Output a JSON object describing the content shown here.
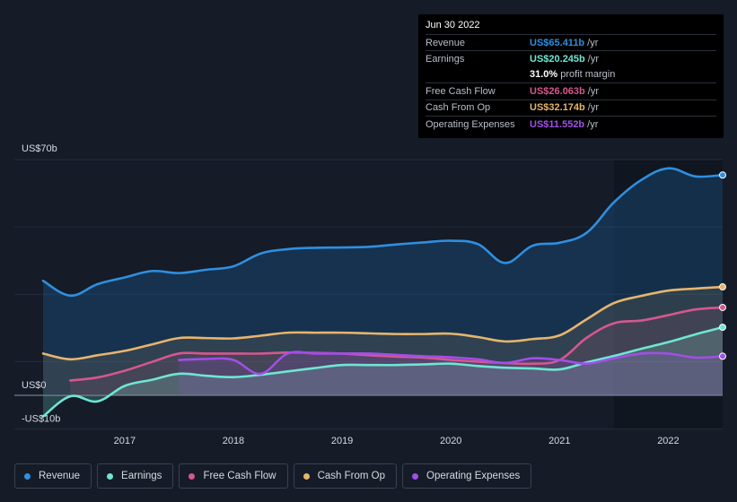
{
  "tooltip": {
    "date": "Jun 30 2022",
    "rows": [
      {
        "label": "Revenue",
        "value": "US$65.411b",
        "unit": "/yr",
        "color": "#2e8fe0"
      },
      {
        "label": "Earnings",
        "value": "US$20.245b",
        "unit": "/yr",
        "color": "#6ee6d4"
      },
      {
        "label": "",
        "value": "31.0%",
        "unit": "profit margin",
        "color": "#ffffff"
      },
      {
        "label": "Free Cash Flow",
        "value": "US$26.063b",
        "unit": "/yr",
        "color": "#d5578e"
      },
      {
        "label": "Cash From Op",
        "value": "US$32.174b",
        "unit": "/yr",
        "color": "#e6b56e"
      },
      {
        "label": "Operating Expenses",
        "value": "US$11.552b",
        "unit": "/yr",
        "color": "#a24ee8"
      }
    ]
  },
  "legend": [
    {
      "label": "Revenue",
      "color": "#2e8fe0"
    },
    {
      "label": "Earnings",
      "color": "#6ee6d4"
    },
    {
      "label": "Free Cash Flow",
      "color": "#d5578e"
    },
    {
      "label": "Cash From Op",
      "color": "#e6b56e"
    },
    {
      "label": "Operating Expenses",
      "color": "#a24ee8"
    }
  ],
  "chart_data": {
    "type": "area",
    "title": "",
    "xlabel": "",
    "ylabel": "",
    "ylim": [
      -10,
      70
    ],
    "xlim": [
      2016.25,
      2022.5
    ],
    "y_tick_labels": [
      "US$70b",
      "US$0",
      "-US$10b"
    ],
    "x_tick_labels": [
      "2017",
      "2018",
      "2019",
      "2020",
      "2021",
      "2022"
    ],
    "x_ticks": [
      2017,
      2018,
      2019,
      2020,
      2021,
      2022
    ],
    "highlight_start": 2021.5,
    "series": [
      {
        "name": "Revenue",
        "color": "#2e8fe0",
        "points": [
          [
            2016.25,
            34
          ],
          [
            2016.5,
            29.6
          ],
          [
            2016.75,
            33
          ],
          [
            2017.0,
            35
          ],
          [
            2017.25,
            36.9
          ],
          [
            2017.5,
            36.3
          ],
          [
            2017.75,
            37.3
          ],
          [
            2018.0,
            38.3
          ],
          [
            2018.25,
            42.1
          ],
          [
            2018.5,
            43.4
          ],
          [
            2018.75,
            43.8
          ],
          [
            2019.0,
            43.9
          ],
          [
            2019.25,
            44.1
          ],
          [
            2019.5,
            44.8
          ],
          [
            2019.75,
            45.4
          ],
          [
            2020.0,
            45.9
          ],
          [
            2020.25,
            44.9
          ],
          [
            2020.5,
            39.3
          ],
          [
            2020.75,
            44.4
          ],
          [
            2021.0,
            45.3
          ],
          [
            2021.25,
            48.3
          ],
          [
            2021.5,
            57.3
          ],
          [
            2021.75,
            63.9
          ],
          [
            2022.0,
            67.4
          ],
          [
            2022.25,
            65.0
          ],
          [
            2022.5,
            65.4
          ]
        ]
      },
      {
        "name": "Earnings",
        "color": "#6ee6d4",
        "points": [
          [
            2016.25,
            -6.3
          ],
          [
            2016.5,
            -0.3
          ],
          [
            2016.75,
            -1.8
          ],
          [
            2017.0,
            2.8
          ],
          [
            2017.25,
            4.6
          ],
          [
            2017.5,
            6.4
          ],
          [
            2017.75,
            5.8
          ],
          [
            2018.0,
            5.4
          ],
          [
            2018.25,
            6.1
          ],
          [
            2018.5,
            7.1
          ],
          [
            2018.75,
            8.1
          ],
          [
            2019.0,
            9.0
          ],
          [
            2019.25,
            9.0
          ],
          [
            2019.5,
            9.0
          ],
          [
            2019.75,
            9.2
          ],
          [
            2020.0,
            9.4
          ],
          [
            2020.25,
            8.7
          ],
          [
            2020.5,
            8.2
          ],
          [
            2020.75,
            8.0
          ],
          [
            2021.0,
            7.7
          ],
          [
            2021.25,
            9.8
          ],
          [
            2021.5,
            11.7
          ],
          [
            2021.75,
            13.8
          ],
          [
            2022.0,
            15.8
          ],
          [
            2022.25,
            18.1
          ],
          [
            2022.5,
            20.2
          ]
        ]
      },
      {
        "name": "Free Cash Flow",
        "color": "#d5578e",
        "points": [
          [
            2016.5,
            4.4
          ],
          [
            2016.75,
            5.3
          ],
          [
            2017.0,
            7.3
          ],
          [
            2017.25,
            9.9
          ],
          [
            2017.5,
            12.4
          ],
          [
            2017.75,
            12.4
          ],
          [
            2018.0,
            12.4
          ],
          [
            2018.25,
            12.4
          ],
          [
            2018.5,
            12.7
          ],
          [
            2018.75,
            12.6
          ],
          [
            2019.0,
            12.4
          ],
          [
            2019.25,
            11.9
          ],
          [
            2019.5,
            11.5
          ],
          [
            2019.75,
            11.2
          ],
          [
            2020.0,
            10.5
          ],
          [
            2020.25,
            10.0
          ],
          [
            2020.5,
            9.6
          ],
          [
            2020.75,
            9.4
          ],
          [
            2021.0,
            10.5
          ],
          [
            2021.25,
            17.1
          ],
          [
            2021.5,
            21.4
          ],
          [
            2021.75,
            22.2
          ],
          [
            2022.0,
            23.8
          ],
          [
            2022.25,
            25.5
          ],
          [
            2022.5,
            26.1
          ]
        ]
      },
      {
        "name": "Cash From Op",
        "color": "#e6b56e",
        "points": [
          [
            2016.25,
            12.4
          ],
          [
            2016.5,
            10.7
          ],
          [
            2016.75,
            11.9
          ],
          [
            2017.0,
            13.2
          ],
          [
            2017.25,
            15.1
          ],
          [
            2017.5,
            17.0
          ],
          [
            2017.75,
            17.0
          ],
          [
            2018.0,
            16.9
          ],
          [
            2018.25,
            17.7
          ],
          [
            2018.5,
            18.6
          ],
          [
            2018.75,
            18.6
          ],
          [
            2019.0,
            18.6
          ],
          [
            2019.25,
            18.4
          ],
          [
            2019.5,
            18.2
          ],
          [
            2019.75,
            18.2
          ],
          [
            2020.0,
            18.3
          ],
          [
            2020.25,
            17.3
          ],
          [
            2020.5,
            16.0
          ],
          [
            2020.75,
            16.7
          ],
          [
            2021.0,
            17.8
          ],
          [
            2021.25,
            22.6
          ],
          [
            2021.5,
            27.4
          ],
          [
            2021.75,
            29.5
          ],
          [
            2022.0,
            31.1
          ],
          [
            2022.25,
            31.7
          ],
          [
            2022.5,
            32.2
          ]
        ]
      },
      {
        "name": "Operating Expenses",
        "color": "#a24ee8",
        "points": [
          [
            2017.5,
            10.5
          ],
          [
            2017.75,
            10.8
          ],
          [
            2018.0,
            10.5
          ],
          [
            2018.25,
            6.4
          ],
          [
            2018.5,
            12.4
          ],
          [
            2018.75,
            12.4
          ],
          [
            2019.0,
            12.4
          ],
          [
            2019.25,
            12.4
          ],
          [
            2019.5,
            12.0
          ],
          [
            2019.75,
            11.6
          ],
          [
            2020.0,
            11.3
          ],
          [
            2020.25,
            10.7
          ],
          [
            2020.5,
            9.6
          ],
          [
            2020.75,
            11.0
          ],
          [
            2021.0,
            10.5
          ],
          [
            2021.25,
            9.4
          ],
          [
            2021.5,
            11.0
          ],
          [
            2021.75,
            12.4
          ],
          [
            2022.0,
            12.4
          ],
          [
            2022.25,
            11.2
          ],
          [
            2022.5,
            11.6
          ]
        ]
      }
    ]
  }
}
